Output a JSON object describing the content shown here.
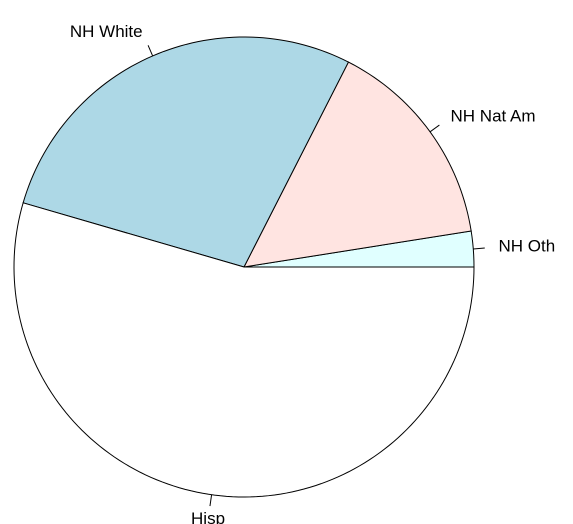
{
  "chart_data": {
    "type": "pie",
    "title": "",
    "categories": [
      "NH Oth",
      "NH Nat Am",
      "NH White",
      "Hisp"
    ],
    "values": [
      2.5,
      15.0,
      28.0,
      54.5
    ],
    "colors": [
      "#e0ffff",
      "#ffe4e1",
      "#add8e6",
      "#ffffff"
    ],
    "start_angle_deg": 0,
    "direction": "counterclockwise",
    "legend": "none"
  }
}
